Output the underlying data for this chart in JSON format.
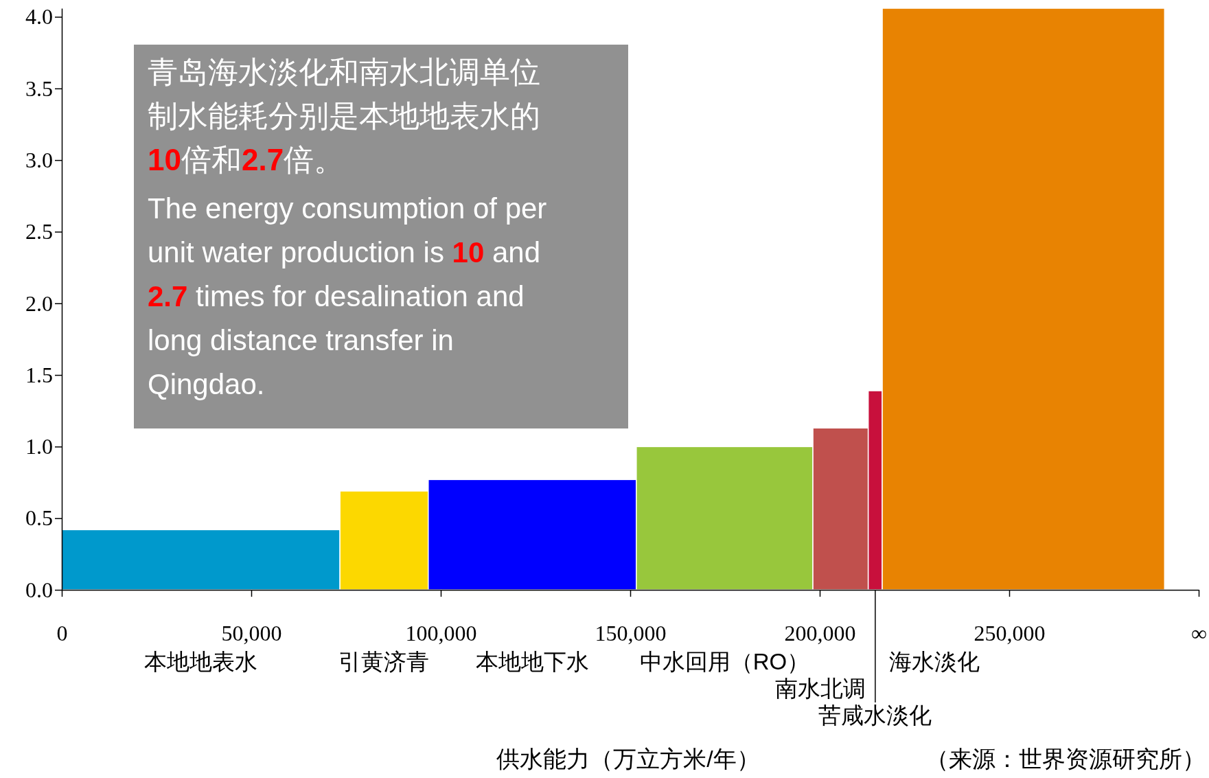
{
  "chart_data": {
    "type": "histogram",
    "bins": [
      0,
      73400,
      96700,
      151600,
      198200,
      212800,
      216500,
      291000
    ],
    "values": [
      0.42,
      0.69,
      0.77,
      1.0,
      1.13,
      1.39,
      4.06
    ],
    "colors": [
      "#0099cc",
      "#fcd800",
      "#0000ff",
      "#98c73c",
      "#c0504d",
      "#c8103c",
      "#e88302"
    ],
    "xlim": [
      0,
      300000
    ],
    "xticks": [
      0,
      {
        "value": 50000,
        "label": "50,000"
      },
      {
        "value": 100000,
        "label": "100,000"
      },
      {
        "value": 150000,
        "label": "150,000"
      },
      {
        "value": 200000,
        "label": "200,000"
      },
      {
        "value": 250000,
        "label": "250,000"
      },
      {
        "value": 300000,
        "label": "∞"
      }
    ],
    "ylim": [
      0,
      4.06
    ],
    "yticks": [
      {
        "value": 0,
        "label": "0.0"
      },
      {
        "value": 0.5,
        "label": "0.5"
      },
      {
        "value": 1,
        "label": "1.0"
      },
      {
        "value": 1.5,
        "label": "1.5"
      },
      {
        "value": 2,
        "label": "2.0"
      },
      {
        "value": 2.5,
        "label": "2.5"
      },
      {
        "value": 3,
        "label": "3.0"
      },
      {
        "value": 3.5,
        "label": "3.5"
      },
      {
        "value": 4,
        "label": "4.0"
      }
    ],
    "xlabel": "供水能力（万立方米/年）",
    "annotations": [
      "青岛海水淡化和南水北调单位制水能耗分别是本地地表水的10倍和2.7倍。",
      "The energy consumption of per unit water production is 10 and 2.7 times for desalination and long distance transfer in Qingdao.",
      "本地地表水",
      "引黄济青",
      "本地地下水",
      "中水回用（RO）",
      "南水北调",
      "苦咸水淡化",
      "海水淡化",
      "（来源：世界资源研究所）"
    ]
  }
}
